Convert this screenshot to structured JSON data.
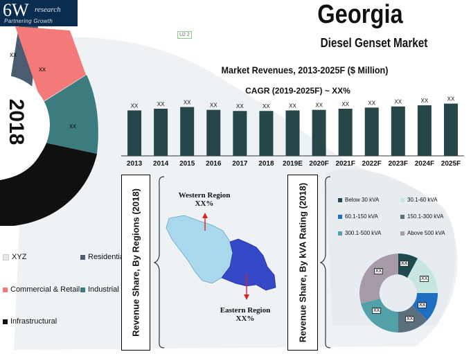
{
  "logo": {
    "main": "6W",
    "research": "research",
    "tagline": "Partnering Growth"
  },
  "header": {
    "title": "Georgia",
    "subtitle": "Diesel Genset Market",
    "tiny_label": "U2 2"
  },
  "donut": {
    "year_label": "2018",
    "segments": [
      {
        "label": "xx",
        "name": "Residential",
        "color": "#4b5b70"
      },
      {
        "label": "xx",
        "name": "Commercial & Retail",
        "color": "#f47a7a"
      },
      {
        "label": "xx",
        "name": "Industrial",
        "color": "#3d7c7e"
      },
      {
        "label": "",
        "name": "Infrastructural",
        "color": "#101010"
      },
      {
        "label": "",
        "name": "XYZ",
        "color": "#dcdcdc"
      }
    ]
  },
  "legend": {
    "xyz": "XYZ",
    "residential": "Residential",
    "commercial": "Commercial & Retail",
    "industrial": "Industrial",
    "infrastructural": "Infrastructural"
  },
  "chart_data": {
    "type": "bar",
    "title": "Market Revenues, 2013-2025F ($ Million)",
    "subtitle": "CAGR (2019-2025F) ~ XX%",
    "categories": [
      "2013",
      "2014",
      "2015",
      "2016",
      "2017",
      "2018",
      "2019E",
      "2020F",
      "2021F",
      "2022F",
      "2023F",
      "2024F",
      "2025F"
    ],
    "values": [
      80,
      83,
      86,
      81,
      79,
      79,
      80,
      81,
      83,
      85,
      87,
      89,
      92
    ],
    "data_labels": [
      "XX",
      "XX",
      "XX",
      "XX",
      "XX",
      "XX",
      "XX",
      "XX",
      "XX",
      "XX",
      "XX",
      "XX",
      "XX"
    ],
    "ylim": [
      0,
      100
    ],
    "bar_color": "#26464a"
  },
  "regions": {
    "box_label": "Revenue Share, By Regions (2018)",
    "western": {
      "name": "Western Region",
      "value": "XX%"
    },
    "eastern": {
      "name": "Eastern Region",
      "value": "XX%"
    }
  },
  "kva": {
    "box_label": "Revenue Share, By kVA Rating (2018)",
    "items": [
      {
        "name": "Below 30 kVA",
        "color": "#1f4a4f",
        "label": "XX"
      },
      {
        "name": "30.1-60 kVA",
        "color": "#c8e6e0",
        "label": "XX"
      },
      {
        "name": "60.1-150 kVA",
        "color": "#1e6fc1",
        "label": "XX"
      },
      {
        "name": "150.1-300 kVA",
        "color": "#5c6f7c",
        "label": "XX"
      },
      {
        "name": "300.1-500 kVA",
        "color": "#52a0a8",
        "label": "XX"
      },
      {
        "name": "Above 500 kVA",
        "color": "#a79aa8",
        "label": "XX"
      }
    ]
  }
}
